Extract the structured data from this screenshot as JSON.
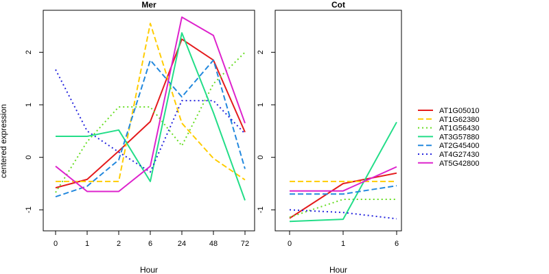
{
  "ylabel": "centered expression",
  "legend": {
    "placement": "right",
    "entries": [
      {
        "name": "AT1G05010",
        "color": "#e41a1c",
        "dash": "solid"
      },
      {
        "name": "AT1G62380",
        "color": "#ffcc00",
        "dash": "dashed"
      },
      {
        "name": "AT1G56430",
        "color": "#66dd22",
        "dash": "dotted"
      },
      {
        "name": "AT3G57880",
        "color": "#22dd88",
        "dash": "solid"
      },
      {
        "name": "AT2G45400",
        "color": "#2288dd",
        "dash": "dashed"
      },
      {
        "name": "AT4G27430",
        "color": "#2222dd",
        "dash": "dotted"
      },
      {
        "name": "AT5G42800",
        "color": "#dd22cc",
        "dash": "solid"
      }
    ]
  },
  "chart_data": [
    {
      "type": "line",
      "title": "Mer",
      "xlabel": "Hour",
      "ylabel": "centered expression",
      "categories": [
        "0",
        "1",
        "2",
        "6",
        "24",
        "48",
        "72"
      ],
      "ylim": [
        -1.4,
        2.8
      ],
      "yticks": [
        -1,
        0,
        1,
        2
      ],
      "grid": false,
      "series": [
        {
          "name": "AT1G05010",
          "values": [
            -0.58,
            -0.42,
            0.12,
            0.68,
            2.25,
            1.85,
            0.48
          ]
        },
        {
          "name": "AT1G62380",
          "values": [
            -0.46,
            -0.46,
            -0.46,
            2.55,
            0.65,
            -0.02,
            -0.43
          ]
        },
        {
          "name": "AT1G56430",
          "values": [
            -0.67,
            0.3,
            0.96,
            0.96,
            0.22,
            1.4,
            2.0
          ]
        },
        {
          "name": "AT3G57880",
          "values": [
            0.4,
            0.4,
            0.52,
            -0.46,
            2.37,
            0.85,
            -0.82
          ]
        },
        {
          "name": "AT2G45400",
          "values": [
            -0.75,
            -0.55,
            -0.05,
            1.85,
            1.15,
            1.85,
            -0.22
          ]
        },
        {
          "name": "AT4G27430",
          "values": [
            1.67,
            0.5,
            0.1,
            -0.28,
            1.08,
            1.08,
            0.45
          ]
        },
        {
          "name": "AT5G42800",
          "values": [
            -0.17,
            -0.65,
            -0.65,
            -0.17,
            2.67,
            2.32,
            0.65
          ]
        }
      ]
    },
    {
      "type": "line",
      "title": "Cot",
      "xlabel": "Hour",
      "categories": [
        "0",
        "1",
        "6"
      ],
      "ylim": [
        -1.4,
        2.8
      ],
      "yticks": [
        -1,
        0,
        1,
        2
      ],
      "grid": false,
      "series": [
        {
          "name": "AT1G05010",
          "values": [
            -1.16,
            -0.5,
            -0.3
          ]
        },
        {
          "name": "AT1G62380",
          "values": [
            -0.46,
            -0.46,
            -0.46
          ]
        },
        {
          "name": "AT1G56430",
          "values": [
            -1.14,
            -0.8,
            -0.8
          ]
        },
        {
          "name": "AT3G57880",
          "values": [
            -1.22,
            -1.18,
            0.67
          ]
        },
        {
          "name": "AT2G45400",
          "values": [
            -0.7,
            -0.7,
            -0.54
          ]
        },
        {
          "name": "AT4G27430",
          "values": [
            -1.0,
            -1.05,
            -1.17
          ]
        },
        {
          "name": "AT5G42800",
          "values": [
            -0.64,
            -0.64,
            -0.18
          ]
        }
      ]
    }
  ]
}
